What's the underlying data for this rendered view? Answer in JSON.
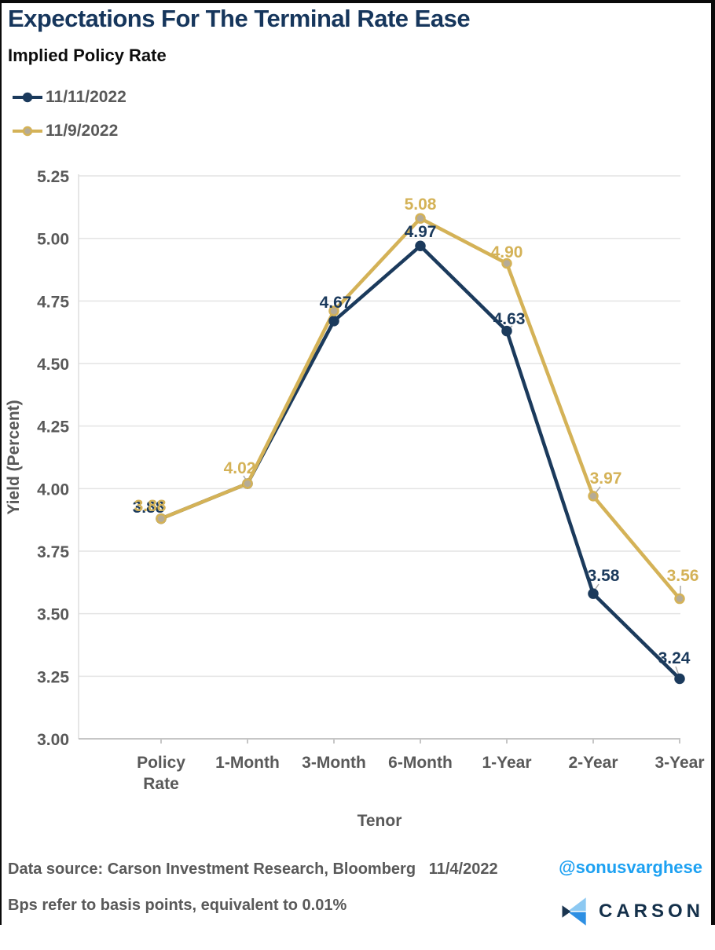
{
  "header": {
    "title": "Expectations For The Terminal Rate Ease",
    "subtitle": "Implied Policy Rate"
  },
  "legend": [
    {
      "label": "11/11/2022",
      "color": "#1b3a5c",
      "marker_fill": "#1b3a5c"
    },
    {
      "label": "11/9/2022",
      "color": "#d4b257",
      "marker_fill": "#b5ab96"
    }
  ],
  "chart_data": {
    "type": "line",
    "title": "Implied Policy Rate",
    "xlabel": "Tenor",
    "ylabel": "Yield (Percent)",
    "categories": [
      "Policy Rate",
      "1-Month",
      "3-Month",
      "6-Month",
      "1-Year",
      "2-Year",
      "3-Year"
    ],
    "series": [
      {
        "name": "11/11/2022",
        "color": "#1b3a5c",
        "marker_fill": "#1b3a5c",
        "values": [
          3.88,
          4.02,
          4.67,
          4.97,
          4.63,
          3.58,
          3.24
        ],
        "labels": [
          null,
          null,
          "4.67",
          "4.97",
          "4.63",
          "3.58",
          "3.24"
        ]
      },
      {
        "name": "11/9/2022",
        "color": "#d4b257",
        "marker_fill": "#b5ab96",
        "values": [
          3.88,
          4.02,
          4.71,
          5.08,
          4.9,
          3.97,
          3.56
        ],
        "labels": [
          "3.88",
          "4.02",
          null,
          "5.08",
          "4.90",
          "3.97",
          "3.56"
        ]
      }
    ],
    "ylim": [
      3.0,
      5.25
    ],
    "ytick_step": 0.25,
    "grid": true,
    "legend_position": "top-left"
  },
  "footer": {
    "source": "Data source: Carson Investment Research, Bloomberg   11/4/2022",
    "note": "Bps refer to basis points, equivalent to 0.01%",
    "handle": "@sonusvarghese",
    "logo_text": "CARSON"
  },
  "colors": {
    "title_navy": "#16365c",
    "series_navy": "#1b3a5c",
    "series_gold": "#d4b257",
    "text_gray": "#595959",
    "handle_blue": "#1da1f2",
    "gridline": "#e4e4e4"
  }
}
